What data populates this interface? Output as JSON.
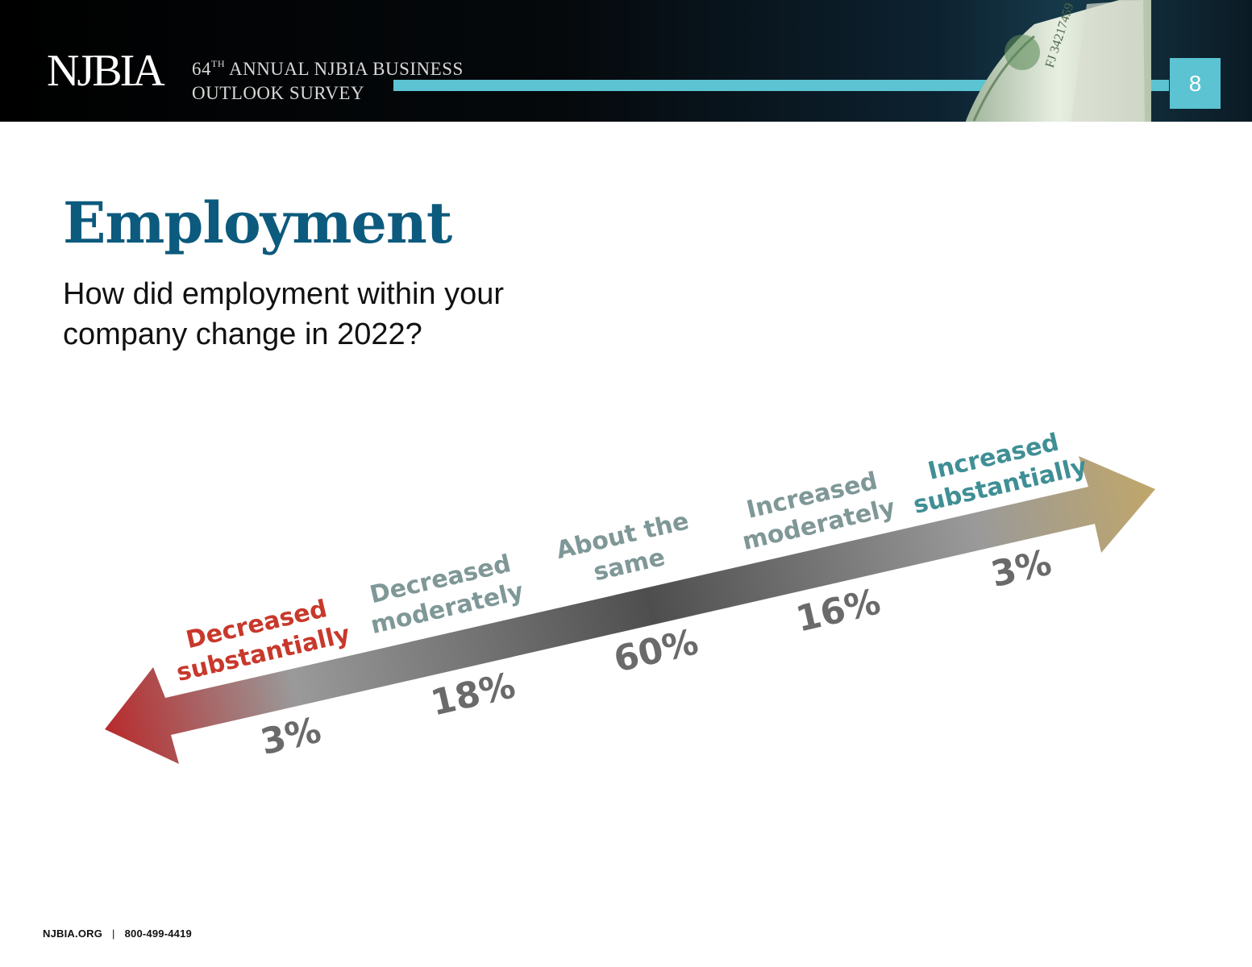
{
  "header": {
    "logo_text": "NJBIA",
    "survey_line1_pre": "64",
    "survey_line1_sup": "TH",
    "survey_line1_post": " ANNUAL NJBIA BUSINESS",
    "survey_line2": "OUTLOOK SURVEY",
    "page_number": "8",
    "accent_color": "#5bc3d1",
    "money_serial": "FJ 34217459"
  },
  "slide": {
    "title": "Employment",
    "subtitle": "How did employment within your company change in 2022?"
  },
  "chart_data": {
    "type": "bar",
    "title": "Employment",
    "question": "How did employment within your company change in 2022?",
    "unit": "%",
    "categories": [
      [
        "Decreased",
        "substantially"
      ],
      [
        "Decreased",
        "moderately"
      ],
      [
        "About the",
        "same"
      ],
      [
        "Increased",
        "moderately"
      ],
      [
        "Increased",
        "substantially"
      ]
    ],
    "values": [
      3,
      18,
      60,
      16,
      3
    ],
    "value_labels": [
      "3%",
      "18%",
      "60%",
      "16%",
      "3%"
    ],
    "label_colors": [
      "#c8382b",
      "#7f9797",
      "#7f9797",
      "#7f9797",
      "#3f8f95"
    ],
    "arrow_colors": [
      "#b82a2c",
      "#9a9a9a",
      "#4e4e4e",
      "#9a9a9a",
      "#c0a66a"
    ]
  },
  "footer": {
    "site": "NJBIA.ORG",
    "separator": "|",
    "phone": "800-499-4419"
  }
}
